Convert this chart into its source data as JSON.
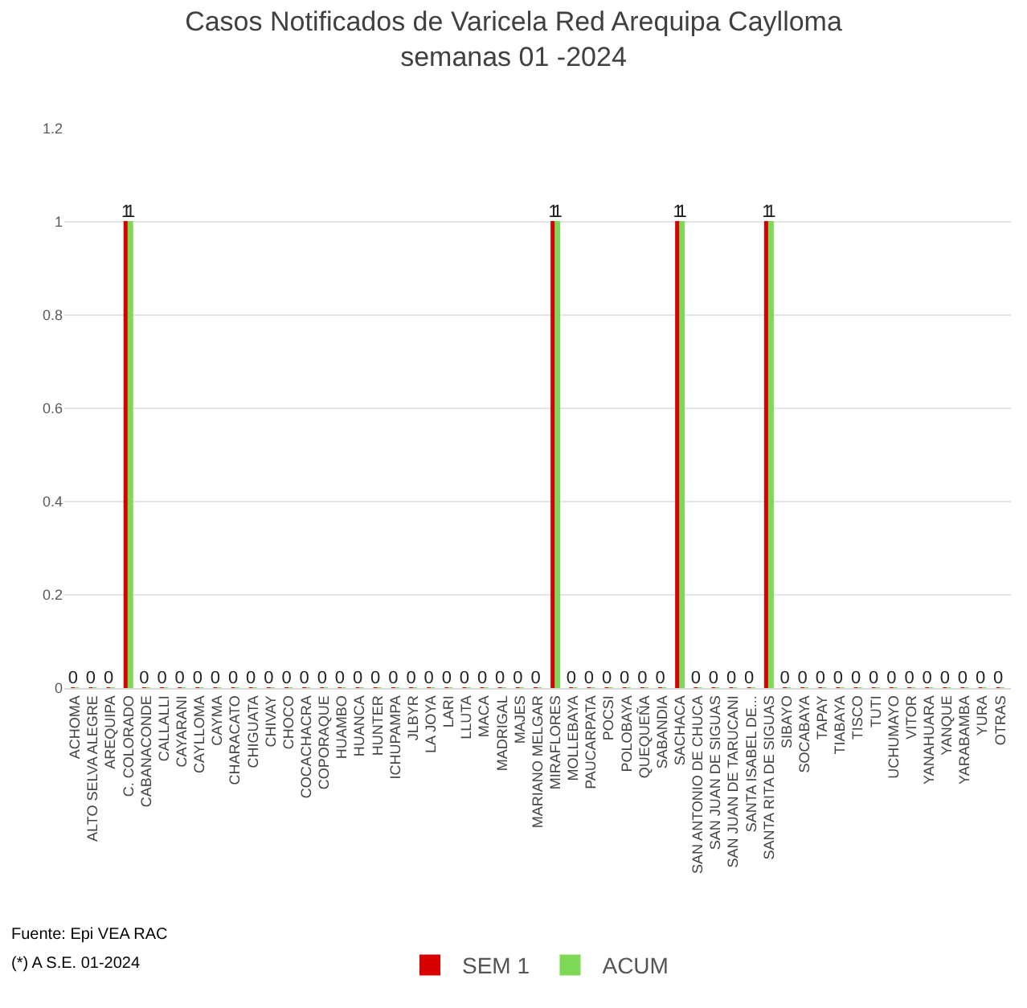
{
  "chart_data": {
    "type": "bar",
    "title": "Casos Notificados de Varicela Red Arequipa Caylloma",
    "subtitle": "semanas 01 -2024",
    "categories": [
      "ACHOMA",
      "ALTO SELVA ALEGRE",
      "AREQUIPA",
      "C. COLORADO",
      "CABANACONDE",
      "CALLALLI",
      "CAYARANI",
      "CAYLLOMA",
      "CAYMA",
      "CHARACATO",
      "CHIGUATA",
      "CHIVAY",
      "CHOCO",
      "COCACHACRA",
      "COPORAQUE",
      "HUAMBO",
      "HUANCA",
      "HUNTER",
      "ICHUPAMPA",
      "JLBYR",
      "LA JOYA",
      "LARI",
      "LLUTA",
      "MACA",
      "MADRIGAL",
      "MAJES",
      "MARIANO MELGAR",
      "MIRAFLORES",
      "MOLLEBAYA",
      "PAUCARPATA",
      "POCSI",
      "POLOBAYA",
      "QUEQUEÑA",
      "SABANDIA",
      "SACHACA",
      "SAN ANTONIO DE CHUCA",
      "SAN JUAN DE SIGUAS",
      "SAN JUAN DE TARUCANI",
      "SANTA ISABEL DE...",
      "SANTA RITA DE SIGUAS",
      "SIBAYO",
      "SOCABAYA",
      "TAPAY",
      "TIABAYA",
      "TISCO",
      "TUTI",
      "UCHUMAYO",
      "VITOR",
      "YANAHUARA",
      "YANQUE",
      "YARABAMBA",
      "YURA",
      "OTRAS"
    ],
    "series": [
      {
        "name": "SEM 1",
        "color": "#d90000",
        "values": [
          0,
          0,
          0,
          1,
          0,
          0,
          0,
          0,
          0,
          0,
          0,
          0,
          0,
          0,
          0,
          0,
          0,
          0,
          0,
          0,
          0,
          0,
          0,
          0,
          0,
          0,
          0,
          1,
          0,
          0,
          0,
          0,
          0,
          0,
          1,
          0,
          0,
          0,
          0,
          1,
          0,
          0,
          0,
          0,
          0,
          0,
          0,
          0,
          0,
          0,
          0,
          0,
          0
        ],
        "value_labels": [
          "0",
          "0",
          "0",
          "1",
          "0",
          "0",
          "0",
          "0",
          "0",
          "0",
          "0",
          "0",
          "0",
          "0",
          "0",
          "0",
          "0",
          "0",
          "0",
          "0",
          "0",
          "0",
          "0",
          "0",
          "0",
          "0",
          "0",
          "1",
          "0",
          "0",
          "0",
          "0",
          "0",
          "0",
          "1",
          "0",
          "0",
          "0",
          "0",
          "1",
          "0",
          "0",
          "0",
          "0",
          "0",
          "0",
          "0",
          "0",
          "0",
          "0",
          "0",
          "0",
          "0"
        ]
      },
      {
        "name": "ACUM",
        "color": "#7ed957",
        "values": [
          0,
          0,
          0,
          1,
          0,
          0,
          0,
          0,
          0,
          0,
          0,
          0,
          0,
          0,
          0,
          0,
          0,
          0,
          0,
          0,
          0,
          0,
          0,
          0,
          0,
          0,
          0,
          1,
          0,
          0,
          0,
          0,
          0,
          0,
          1,
          0,
          0,
          0,
          0,
          1,
          0,
          0,
          0,
          0,
          0,
          0,
          0,
          0,
          0,
          0,
          0,
          0,
          0
        ],
        "value_labels": [
          null,
          null,
          null,
          "1",
          null,
          null,
          null,
          null,
          null,
          null,
          null,
          null,
          null,
          null,
          null,
          null,
          null,
          null,
          null,
          null,
          null,
          null,
          null,
          null,
          null,
          null,
          null,
          "1",
          null,
          null,
          null,
          null,
          null,
          null,
          "1",
          null,
          null,
          null,
          null,
          "1",
          null,
          null,
          null,
          null,
          null,
          null,
          null,
          null,
          null,
          null,
          null,
          null,
          null
        ]
      }
    ],
    "ylim": [
      0,
      1.2
    ],
    "yticks": [
      0,
      0.2,
      0.4,
      0.6,
      0.8,
      1,
      1.2
    ],
    "grid": "y",
    "legend": "bottom",
    "annotations": [
      "Fuente: Epi VEA RAC",
      "(*) A S.E. 01-2024"
    ]
  }
}
